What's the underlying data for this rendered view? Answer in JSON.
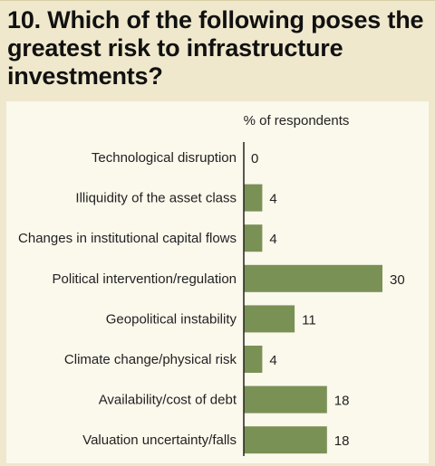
{
  "question": "10. Which of the following poses the greatest risk to infrastructure investments?",
  "chart_data": {
    "type": "bar",
    "orientation": "horizontal",
    "title": "10. Which of the following poses the greatest risk to infrastructure investments?",
    "xlabel": "% of respondents",
    "ylabel": "",
    "xlim": [
      0,
      30
    ],
    "grid": false,
    "legend": "none",
    "categories": [
      "Technological disruption",
      "Illiquidity of the asset class",
      "Changes in institutional capital flows",
      "Political intervention/regulation",
      "Geopolitical instability",
      "Climate change/physical risk",
      "Availability/cost of debt",
      "Valuation uncertainty/falls"
    ],
    "values": [
      0,
      4,
      4,
      30,
      11,
      4,
      18,
      18
    ],
    "colors": {
      "bar": "#7a9155",
      "axis": "#222222",
      "frame": "#efe8cc",
      "panel": "#fbf8ec",
      "text": "#222222"
    }
  }
}
